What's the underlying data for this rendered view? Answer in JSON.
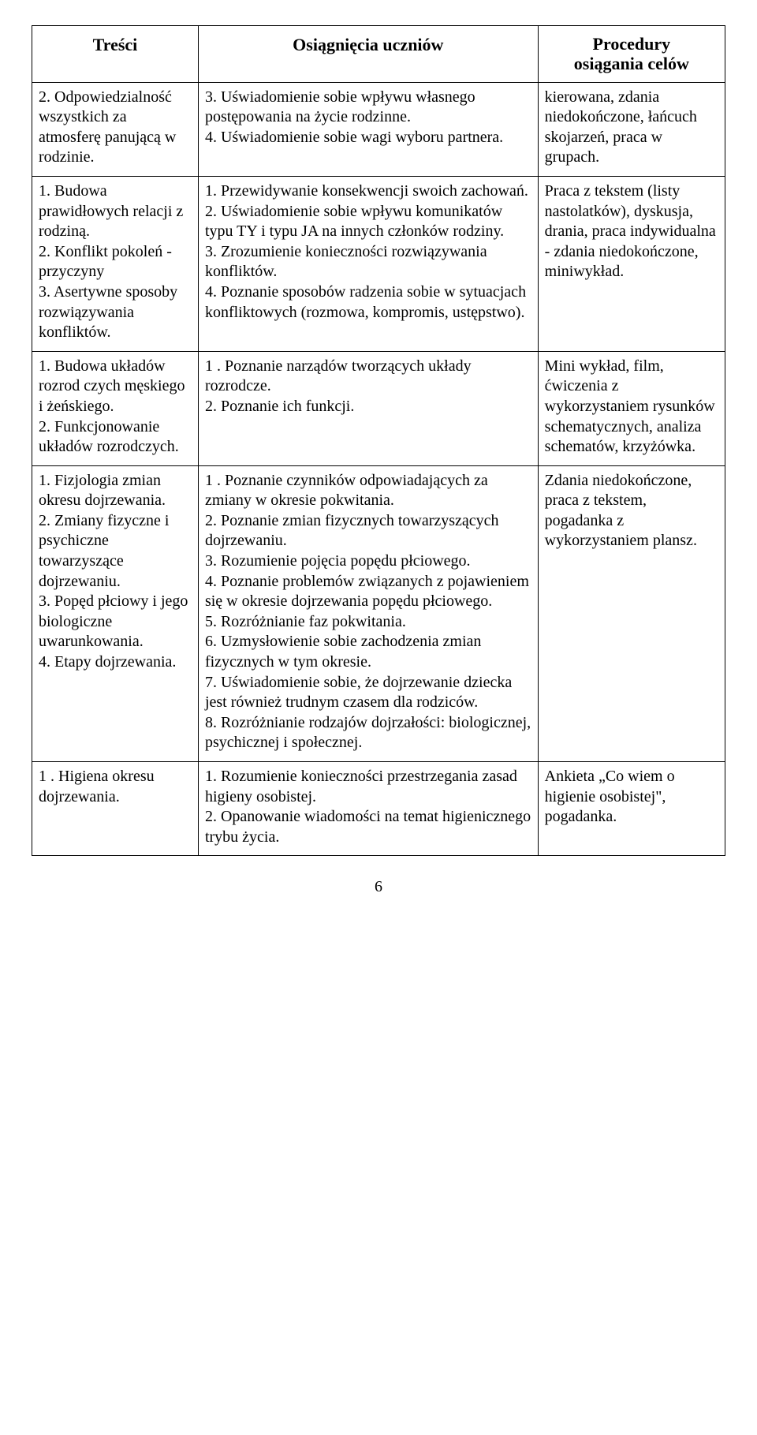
{
  "headers": {
    "col1": "Treści",
    "col2": "Osiągnięcia uczniów",
    "col3_line1": "Procedury",
    "col3_line2": "osiągania celów"
  },
  "rows": [
    {
      "c1": "2. Odpowiedzialność wszystkich za atmosferę panującą w rodzinie.",
      "c2": "3. Uświadomienie sobie wpływu własnego postępowania na życie rodzinne.\n4. Uświadomienie sobie wagi wyboru partnera.",
      "c3": "kierowana, zdania niedokończone, łańcuch skojarzeń, praca w grupach."
    },
    {
      "c1": "1. Budowa prawidłowych relacji z rodziną.\n2. Konflikt pokoleń - przyczyny\n3. Asertywne sposoby rozwiązywania konfliktów.",
      "c2": "1. Przewidywanie konsekwencji swoich zachowań.\n2. Uświadomienie sobie wpływu komunikatów typu TY i typu JA na innych członków rodziny.\n3. Zrozumienie konieczności rozwiązywania konfliktów.\n4. Poznanie sposobów radzenia sobie w sytuacjach konfliktowych (rozmowa, kompromis, ustępstwo).",
      "c3": "Praca z tekstem (listy nastolatków), dyskusja, drania, praca indywidualna - zdania niedokończone, miniwykład."
    },
    {
      "c1": "1. Budowa układów rozrod czych męskiego i żeńskiego.\n2. Funkcjonowanie układów rozrodczych.",
      "c2": "1 . Poznanie narządów tworzących układy rozrodcze.\n2. Poznanie ich funkcji.",
      "c3": "Mini wykład, film, ćwiczenia z wykorzystaniem rysunków schematycznych, analiza schematów, krzyżówka."
    },
    {
      "c1": "1. Fizjologia zmian okresu dojrzewania.\n2. Zmiany fizyczne i psychiczne towarzyszące dojrzewaniu.\n3. Popęd płciowy i jego biologiczne uwarunkowania.\n4. Etapy dojrzewania.",
      "c2": "1 . Poznanie czynników odpowiadających za zmiany w okresie pokwitania.\n2. Poznanie zmian fizycznych towarzyszących dojrzewaniu.\n3. Rozumienie pojęcia popędu płciowego.\n4. Poznanie problemów związanych z pojawieniem się w okresie dojrzewania popędu płciowego.\n5. Rozróżnianie faz pokwitania.\n6. Uzmysłowienie sobie zachodzenia zmian fizycznych w tym okresie.\n7. Uświadomienie sobie, że dojrzewanie dziecka jest również trudnym czasem dla rodziców.\n8. Rozróżnianie rodzajów dojrzałości: biologicznej, psychicznej i społecznej.",
      "c3": "Zdania niedokończone, praca z tekstem, pogadanka z wykorzystaniem plansz."
    },
    {
      "c1": "1 . Higiena okresu dojrzewania.",
      "c2": "1. Rozumienie konieczności przestrzegania zasad higieny osobistej.\n2. Opanowanie wiadomości na temat higienicznego trybu życia.",
      "c3": "Ankieta „Co wiem o higienie osobistej\", pogadanka."
    }
  ],
  "page_number": "6"
}
